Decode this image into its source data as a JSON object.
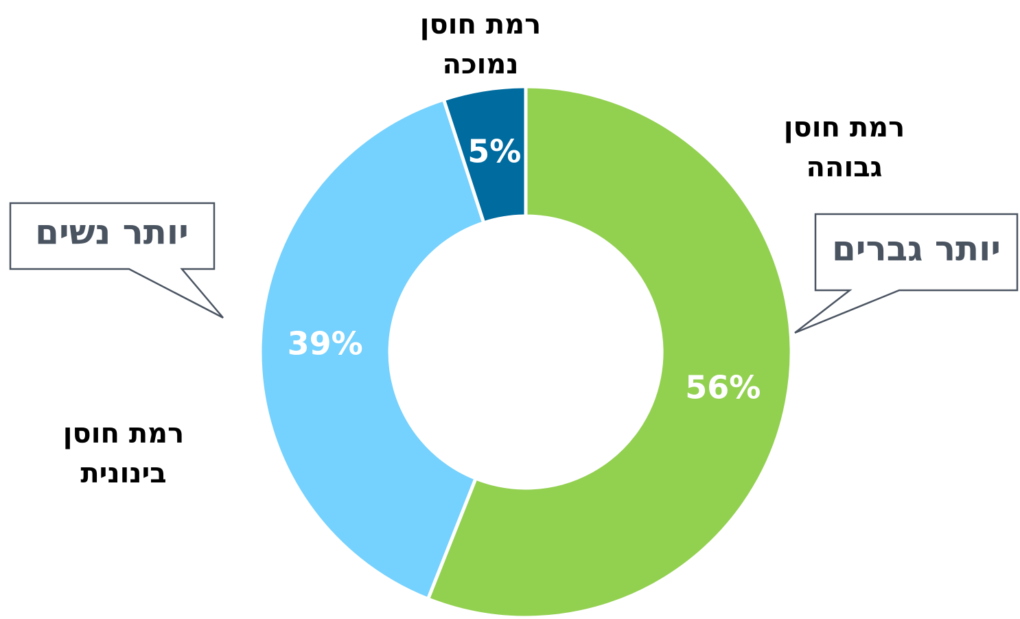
{
  "chart_data": {
    "type": "donut",
    "categories": [
      "רמת חוסן גבוהה",
      "רמת חוסן בינונית",
      "רמת חוסן נמוכה"
    ],
    "values": [
      56,
      39,
      5
    ],
    "value_labels": [
      "56%",
      "39%",
      "5%"
    ],
    "colors": [
      "#92d050",
      "#75d1fd",
      "#006b9f"
    ],
    "annotations": [
      "יותר גברים",
      "יותר נשים"
    ]
  }
}
